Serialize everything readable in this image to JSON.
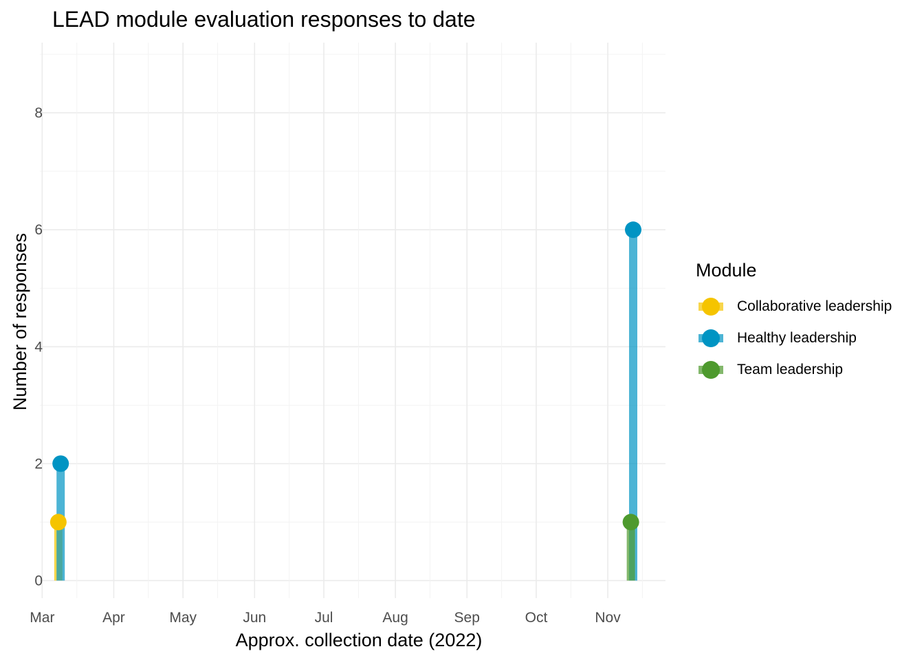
{
  "chart_data": {
    "type": "lollipop",
    "title": "LEAD module evaluation responses to date",
    "xlabel": "Approx. collection date (2022)",
    "ylabel": "Number of responses",
    "x_ticks": [
      {
        "date": "2022-03-01",
        "label": "Mar"
      },
      {
        "date": "2022-04-01",
        "label": "Apr"
      },
      {
        "date": "2022-05-01",
        "label": "May"
      },
      {
        "date": "2022-06-01",
        "label": "Jun"
      },
      {
        "date": "2022-07-01",
        "label": "Jul"
      },
      {
        "date": "2022-08-01",
        "label": "Aug"
      },
      {
        "date": "2022-09-01",
        "label": "Sep"
      },
      {
        "date": "2022-10-01",
        "label": "Oct"
      },
      {
        "date": "2022-11-01",
        "label": "Nov"
      }
    ],
    "xlim": [
      "2022-02-28",
      "2022-11-26"
    ],
    "y_ticks": [
      0,
      2,
      4,
      6,
      8
    ],
    "ylim": [
      -0.3,
      9.2
    ],
    "grid": true,
    "legend_title": "Module",
    "legend_position": "right",
    "series": [
      {
        "name": "Collaborative leadership",
        "color": "#F5C400",
        "points": [
          {
            "x": "2022-03-08",
            "y": 1
          }
        ]
      },
      {
        "name": "Healthy leadership",
        "color": "#0094C3",
        "points": [
          {
            "x": "2022-03-09",
            "y": 2
          },
          {
            "x": "2022-11-12",
            "y": 6
          }
        ]
      },
      {
        "name": "Team leadership",
        "color": "#4E9A2E",
        "points": [
          {
            "x": "2022-11-11",
            "y": 1
          }
        ]
      }
    ]
  }
}
